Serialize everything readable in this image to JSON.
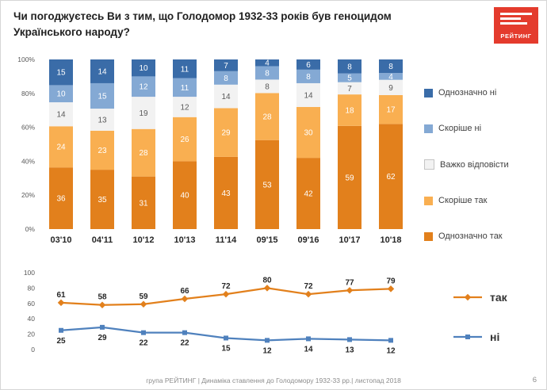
{
  "header": {
    "title": "Чи погоджуєтесь Ви з тим, що Голодомор 1932-33 років був геноцидом Українського народу?",
    "logo_text": "РЕЙТИНГ"
  },
  "chart_data": [
    {
      "type": "bar",
      "subtype": "stacked-percent",
      "categories": [
        "03'10",
        "04'11",
        "10'12",
        "10'13",
        "11'14",
        "09'15",
        "09'16",
        "10'17",
        "10'18"
      ],
      "series": [
        {
          "name": "Однозначно так",
          "color": "#e2801c",
          "label_color": "#ffffff",
          "values": [
            36,
            35,
            31,
            40,
            43,
            53,
            42,
            59,
            62
          ]
        },
        {
          "name": "Скоріше так",
          "color": "#f9af51",
          "label_color": "#ffffff",
          "values": [
            24,
            23,
            28,
            26,
            29,
            28,
            30,
            18,
            17
          ]
        },
        {
          "name": "Важко відповісти",
          "color": "#f2f2f2",
          "label_color": "#595959",
          "light": true,
          "values": [
            14,
            13,
            19,
            12,
            14,
            8,
            14,
            7,
            9
          ]
        },
        {
          "name": "Скоріше ні",
          "color": "#84a9d4",
          "label_color": "#ffffff",
          "values": [
            10,
            15,
            12,
            11,
            8,
            8,
            8,
            5,
            4
          ]
        },
        {
          "name": "Однозначно ні",
          "color": "#3a6ca8",
          "label_color": "#ffffff",
          "values": [
            15,
            14,
            10,
            11,
            7,
            4,
            6,
            8,
            8
          ]
        }
      ],
      "ylabels": [
        "0%",
        "20%",
        "40%",
        "60%",
        "80%",
        "100%"
      ],
      "ylim": [
        0,
        100
      ],
      "legend_position": "right",
      "legend_order": "reversed"
    },
    {
      "type": "line",
      "categories": [
        "03'10",
        "04'11",
        "10'12",
        "10'13",
        "11'14",
        "09'15",
        "09'16",
        "10'17",
        "10'18"
      ],
      "series": [
        {
          "name": "так",
          "color": "#e2801c",
          "marker": "diamond",
          "label_position": "above",
          "values": [
            61,
            58,
            59,
            66,
            72,
            80,
            72,
            77,
            79
          ]
        },
        {
          "name": "ні",
          "color": "#4f81bd",
          "marker": "square",
          "label_position": "below",
          "values": [
            25,
            29,
            22,
            22,
            15,
            12,
            14,
            13,
            12
          ]
        }
      ],
      "yticks": [
        0,
        20,
        40,
        60,
        80,
        100
      ],
      "ylim": [
        0,
        100
      ],
      "legend_position": "right"
    }
  ],
  "footer": {
    "text": "група РЕЙТИНГ  |  Динаміка ставлення до Голодомору 1932-33 рр.|  листопад  2018",
    "page_number": "6"
  }
}
